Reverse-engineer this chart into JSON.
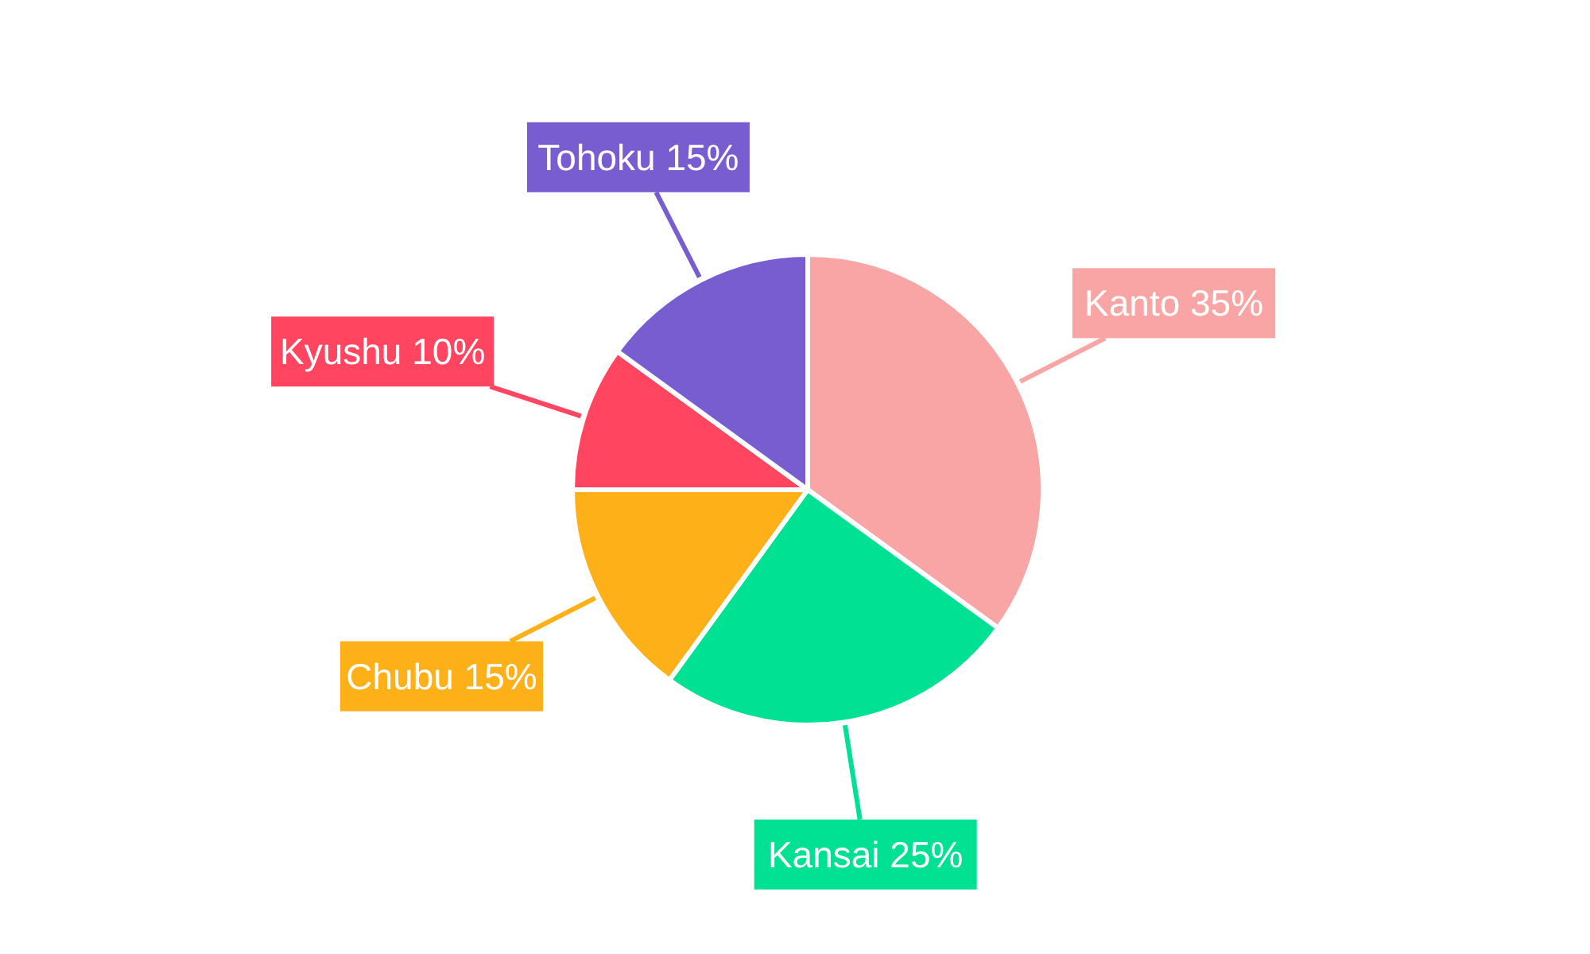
{
  "chart_data": {
    "type": "pie",
    "categories": [
      "Kanto",
      "Kansai",
      "Chubu",
      "Kyushu",
      "Tohoku"
    ],
    "values": [
      35,
      25,
      15,
      10,
      15
    ],
    "value_labels": [
      "35%",
      "25%",
      "15%",
      "10%",
      "15%"
    ],
    "colors": [
      "#f9a5a6",
      "#00e194",
      "#feb019",
      "#ff4560",
      "#775dd0"
    ]
  }
}
